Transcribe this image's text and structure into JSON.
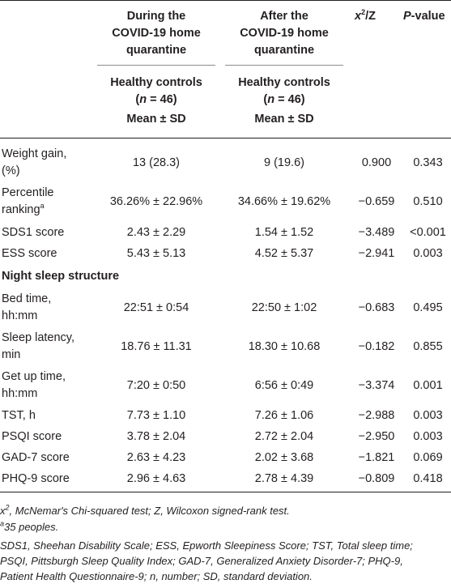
{
  "header": {
    "col1_title": [
      "During the",
      "COVID-19 home",
      "quarantine"
    ],
    "col2_title": [
      "After the",
      "COVID-19 home",
      "quarantine"
    ],
    "col3_title_base": "x",
    "col3_title_sup": "2",
    "col3_title_rest": "/Z",
    "col4_title_italic": "P",
    "col4_title_rest": "-value",
    "group_label": "Healthy controls",
    "n_open": "(",
    "n_var": "n",
    "n_rest": " = 46)",
    "stat_label": "Mean ± SD"
  },
  "rows": [
    {
      "label": [
        "Weight gain,",
        "(%)"
      ],
      "during": "13 (28.3)",
      "after": "9 (19.6)",
      "stat": "0.900",
      "p": "0.343"
    },
    {
      "label": [
        "Percentile",
        "ranking"
      ],
      "label_sup": "a",
      "during": "36.26% ± 22.96%",
      "after": "34.66% ± 19.62%",
      "stat": "−0.659",
      "p": "0.510"
    },
    {
      "label": [
        "SDS1 score"
      ],
      "during": "2.43 ± 2.29",
      "after": "1.54 ± 1.52",
      "stat": "−3.489",
      "p": "<0.001"
    },
    {
      "label": [
        "ESS score"
      ],
      "during": "5.43 ± 5.13",
      "after": "4.52 ± 5.37",
      "stat": "−2.941",
      "p": "0.003"
    },
    {
      "section": "Night sleep structure"
    },
    {
      "label": [
        "Bed time,",
        "hh:mm"
      ],
      "during": "22:51 ± 0:54",
      "after": "22:50 ± 1:02",
      "stat": "−0.683",
      "p": "0.495"
    },
    {
      "label": [
        "Sleep latency,",
        "min"
      ],
      "during": "18.76 ± 11.31",
      "after": "18.30 ± 10.68",
      "stat": "−0.182",
      "p": "0.855"
    },
    {
      "label": [
        "Get up time,",
        "hh:mm"
      ],
      "during": "7:20 ± 0:50",
      "after": "6:56 ± 0:49",
      "stat": "−3.374",
      "p": "0.001"
    },
    {
      "label": [
        "TST, h"
      ],
      "during": "7.73 ± 1.10",
      "after": "7.26 ± 1.06",
      "stat": "−2.988",
      "p": "0.003"
    },
    {
      "label": [
        "PSQI score"
      ],
      "during": "3.78 ± 2.04",
      "after": "2.72 ± 2.04",
      "stat": "−2.950",
      "p": "0.003"
    },
    {
      "label": [
        "GAD-7 score"
      ],
      "during": "2.63 ± 4.23",
      "after": "2.02 ± 3.68",
      "stat": "−1.821",
      "p": "0.069"
    },
    {
      "label": [
        "PHQ-9 score"
      ],
      "during": "2.96 ± 4.63",
      "after": "2.78 ± 4.39",
      "stat": "−0.809",
      "p": "0.418"
    }
  ],
  "footnotes": {
    "line1_pre": "x",
    "line1_sup": "2",
    "line1_rest": ", McNemar's Chi-squared test; Z, Wilcoxon signed-rank test.",
    "line2_sup": "a",
    "line2_rest": "35 peoples.",
    "abbrev_lines": [
      "SDS1, Sheehan Disability Scale; ESS, Epworth Sleepiness Score; TST, Total sleep time;",
      "PSQI, Pittsburgh Sleep Quality Index; GAD-7, Generalized Anxiety Disorder-7; PHQ-9,",
      "Patient Health Questionnaire-9; n, number; SD, standard deviation."
    ]
  }
}
